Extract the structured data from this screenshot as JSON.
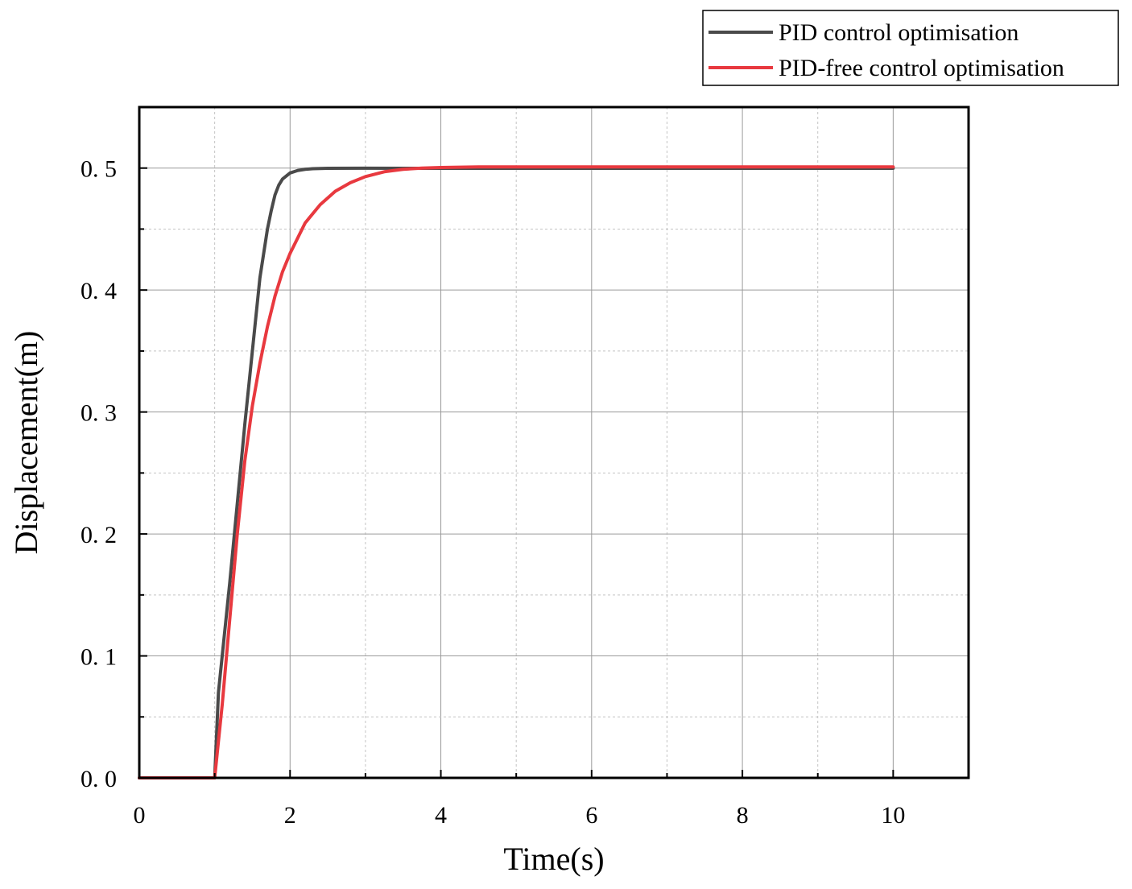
{
  "chart_data": {
    "type": "line",
    "xlabel": "Time(s)",
    "ylabel": "Displacement(m)",
    "xlim": [
      0,
      11
    ],
    "ylim": [
      0,
      0.55
    ],
    "x_ticks": [
      0,
      2,
      4,
      6,
      8,
      10
    ],
    "x_tick_labels": [
      "0",
      "2",
      "4",
      "6",
      "8",
      "10"
    ],
    "y_ticks": [
      0.0,
      0.1,
      0.2,
      0.3,
      0.4,
      0.5
    ],
    "y_tick_labels": [
      "0. 0",
      "0. 1",
      "0. 2",
      "0. 3",
      "0. 4",
      "0. 5"
    ],
    "grid": true,
    "legend_position": "top-right, outside plot",
    "series": [
      {
        "name": "PID control optimisation",
        "color": "#4a4a4a",
        "x": [
          0,
          1.0,
          1.05,
          1.2,
          1.4,
          1.6,
          1.7,
          1.75,
          1.8,
          1.85,
          1.9,
          2.0,
          2.1,
          2.2,
          2.3,
          2.5,
          3.0,
          4.0,
          6.0,
          8.0,
          10.0
        ],
        "y": [
          0,
          0,
          0.07,
          0.16,
          0.29,
          0.41,
          0.45,
          0.465,
          0.478,
          0.486,
          0.491,
          0.496,
          0.498,
          0.499,
          0.4995,
          0.4998,
          0.4999,
          0.4998,
          0.4998,
          0.4998,
          0.4998
        ]
      },
      {
        "name": "PID-free control optimisation",
        "color": "#e8393f",
        "x": [
          0,
          1.0,
          1.1,
          1.2,
          1.3,
          1.4,
          1.5,
          1.6,
          1.7,
          1.8,
          1.9,
          2.0,
          2.2,
          2.4,
          2.6,
          2.8,
          3.0,
          3.25,
          3.5,
          3.75,
          4.0,
          4.5,
          5.0,
          6.0,
          8.0,
          10.0
        ],
        "y": [
          0,
          0,
          0.06,
          0.13,
          0.2,
          0.26,
          0.305,
          0.34,
          0.37,
          0.395,
          0.415,
          0.43,
          0.455,
          0.47,
          0.481,
          0.488,
          0.493,
          0.497,
          0.499,
          0.5,
          0.5005,
          0.501,
          0.501,
          0.501,
          0.501,
          0.501
        ]
      }
    ]
  }
}
